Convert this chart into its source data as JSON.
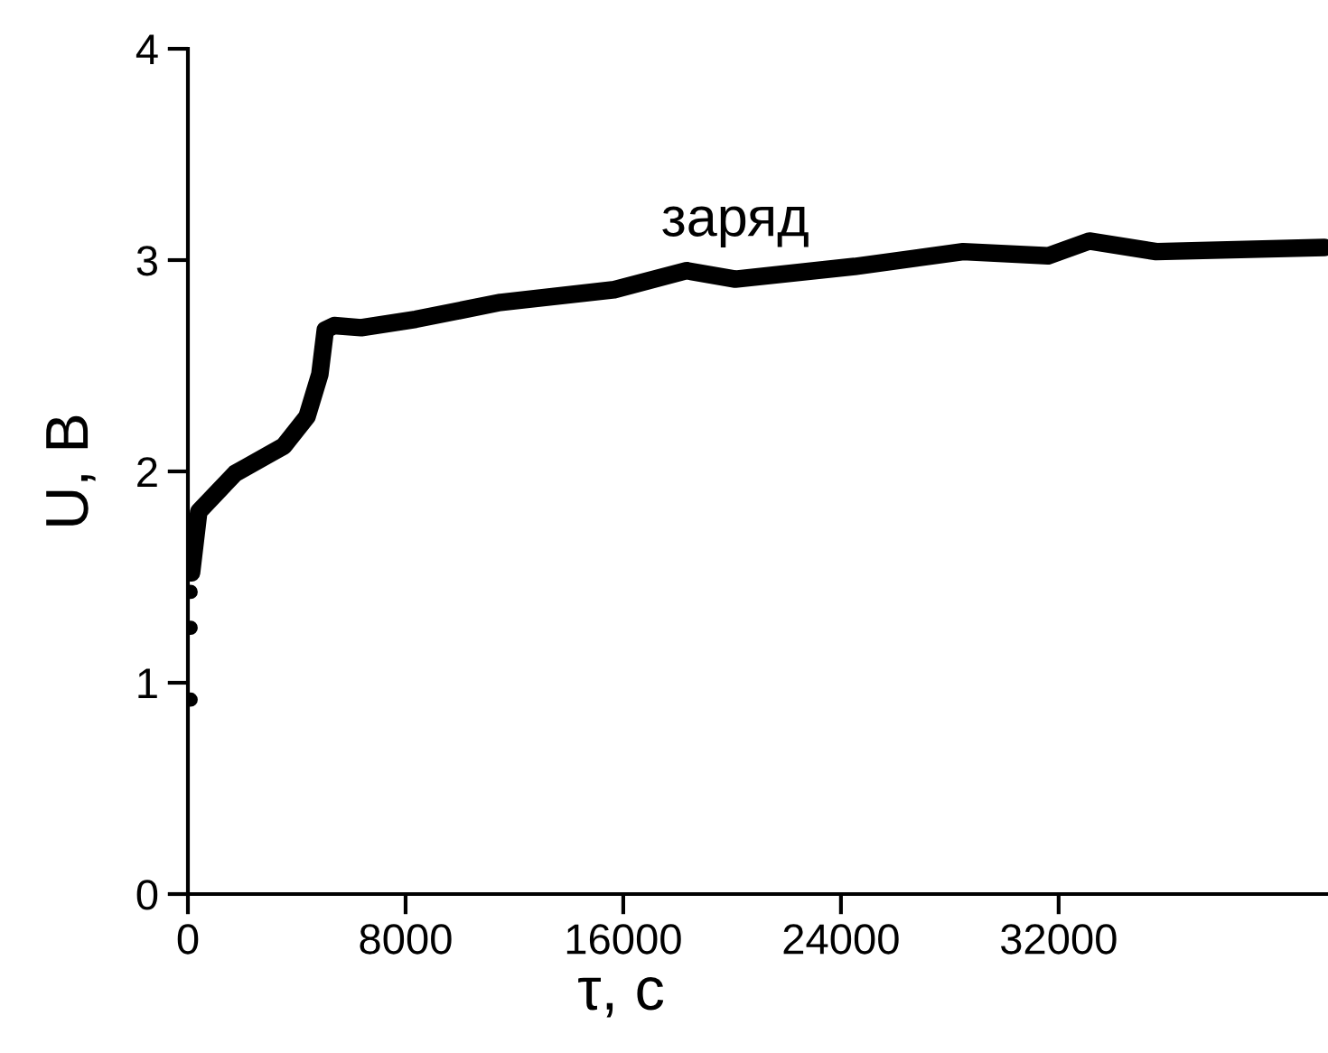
{
  "chart_data": {
    "type": "line",
    "xlabel": "τ, с",
    "ylabel": "U, В",
    "annotations": [
      "заряд"
    ],
    "xlim": [
      0,
      41900
    ],
    "xticks": [
      0,
      8000,
      16000,
      24000,
      32000
    ],
    "ylim": [
      0,
      4
    ],
    "yticks": [
      0,
      1,
      2,
      3,
      4
    ],
    "grid": false,
    "legend": false,
    "series": [
      {
        "color": "#000000",
        "x": [
          133,
          400,
          1730,
          3520,
          4380,
          4850,
          5050,
          5380,
          6370,
          8370,
          11490,
          15670,
          18330,
          20120,
          24500,
          28490,
          31610,
          33130,
          35590,
          41770
        ],
        "values": [
          1.52,
          1.81,
          1.99,
          2.12,
          2.26,
          2.46,
          2.67,
          2.69,
          2.68,
          2.72,
          2.8,
          2.86,
          2.95,
          2.91,
          2.97,
          3.04,
          3.02,
          3.09,
          3.04,
          3.06
        ]
      },
      {
        "color": "#000000",
        "type": "scatter",
        "marker": "circle",
        "x": [
          100,
          100,
          100
        ],
        "values": [
          1.43,
          1.26,
          0.92
        ]
      }
    ]
  }
}
